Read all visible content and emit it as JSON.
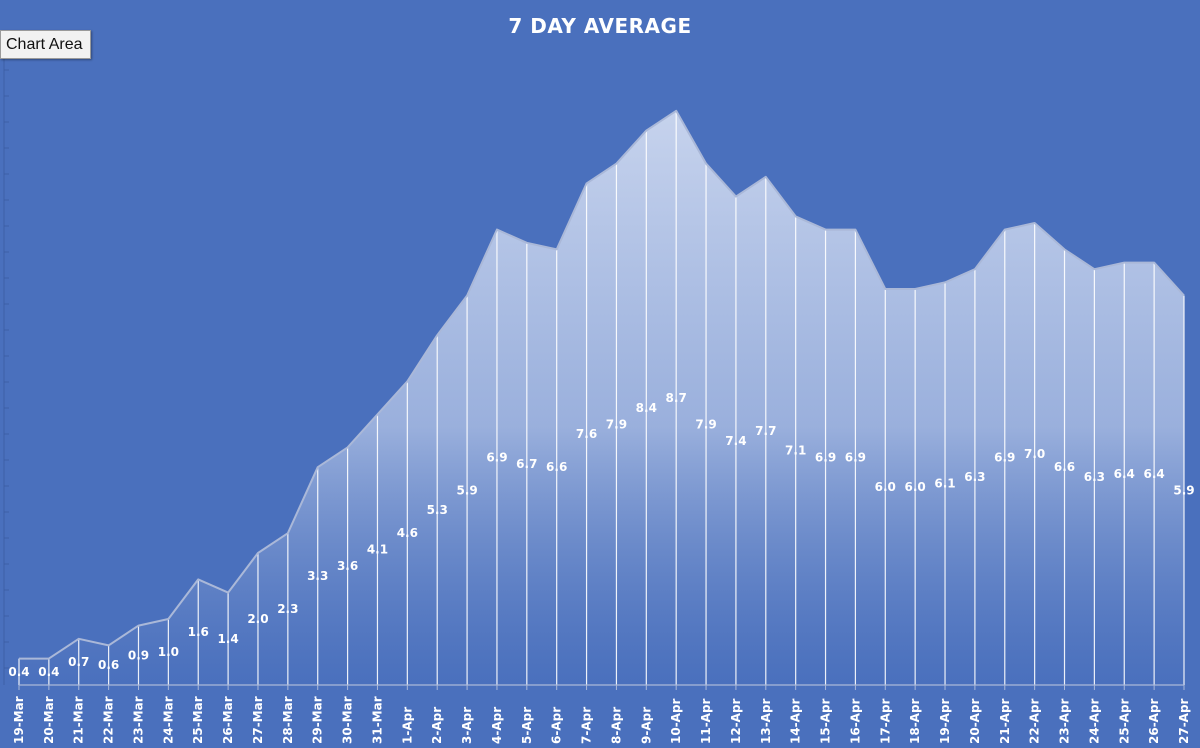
{
  "tooltip": {
    "label": "Chart Area"
  },
  "chart_data": {
    "type": "area",
    "title": "7 DAY AVERAGE",
    "xlabel": "",
    "ylabel": "",
    "ylim": [
      0,
      10
    ],
    "grid": false,
    "legend": "none",
    "colors": {
      "background": "#4a70bd",
      "area_top": "#c9d5ee",
      "area_bottom": "#4a70bd",
      "line": "#aab8d8",
      "drop_line": "#ffffff",
      "text": "#ffffff"
    },
    "categories": [
      "19-Mar",
      "20-Mar",
      "21-Mar",
      "22-Mar",
      "23-Mar",
      "24-Mar",
      "25-Mar",
      "26-Mar",
      "27-Mar",
      "28-Mar",
      "29-Mar",
      "30-Mar",
      "31-Mar",
      "1-Apr",
      "2-Apr",
      "3-Apr",
      "4-Apr",
      "5-Apr",
      "6-Apr",
      "7-Apr",
      "8-Apr",
      "9-Apr",
      "10-Apr",
      "11-Apr",
      "12-Apr",
      "13-Apr",
      "14-Apr",
      "15-Apr",
      "16-Apr",
      "17-Apr",
      "18-Apr",
      "19-Apr",
      "20-Apr",
      "21-Apr",
      "22-Apr",
      "23-Apr",
      "24-Apr",
      "25-Apr",
      "26-Apr",
      "27-Apr"
    ],
    "values": [
      0.4,
      0.4,
      0.7,
      0.6,
      0.9,
      1.0,
      1.6,
      1.4,
      2.0,
      2.3,
      3.3,
      3.6,
      4.1,
      4.6,
      5.3,
      5.9,
      6.9,
      6.7,
      6.6,
      7.6,
      7.9,
      8.4,
      8.7,
      7.9,
      7.4,
      7.7,
      7.1,
      6.9,
      6.9,
      6.0,
      6.0,
      6.1,
      6.3,
      6.9,
      7.0,
      6.6,
      6.3,
      6.4,
      6.4,
      5.9
    ],
    "data_labels": [
      "0.4",
      "0.4",
      "0.7",
      "0.6",
      "0.9",
      "1.0",
      "1.6",
      "1.4",
      "2.0",
      "2.3",
      "3.3",
      "3.6",
      "4.1",
      "4.6",
      "5.3",
      "5.9",
      "6.9",
      "6.7",
      "6.6",
      "7.6",
      "7.9",
      "8.4",
      "8.7",
      "7.9",
      "7.4",
      "7.7",
      "7.1",
      "6.9",
      "6.9",
      "6.0",
      "6.0",
      "6.1",
      "6.3",
      "6.9",
      "7.0",
      "6.6",
      "6.3",
      "6.4",
      "6.4",
      "5.9"
    ]
  }
}
